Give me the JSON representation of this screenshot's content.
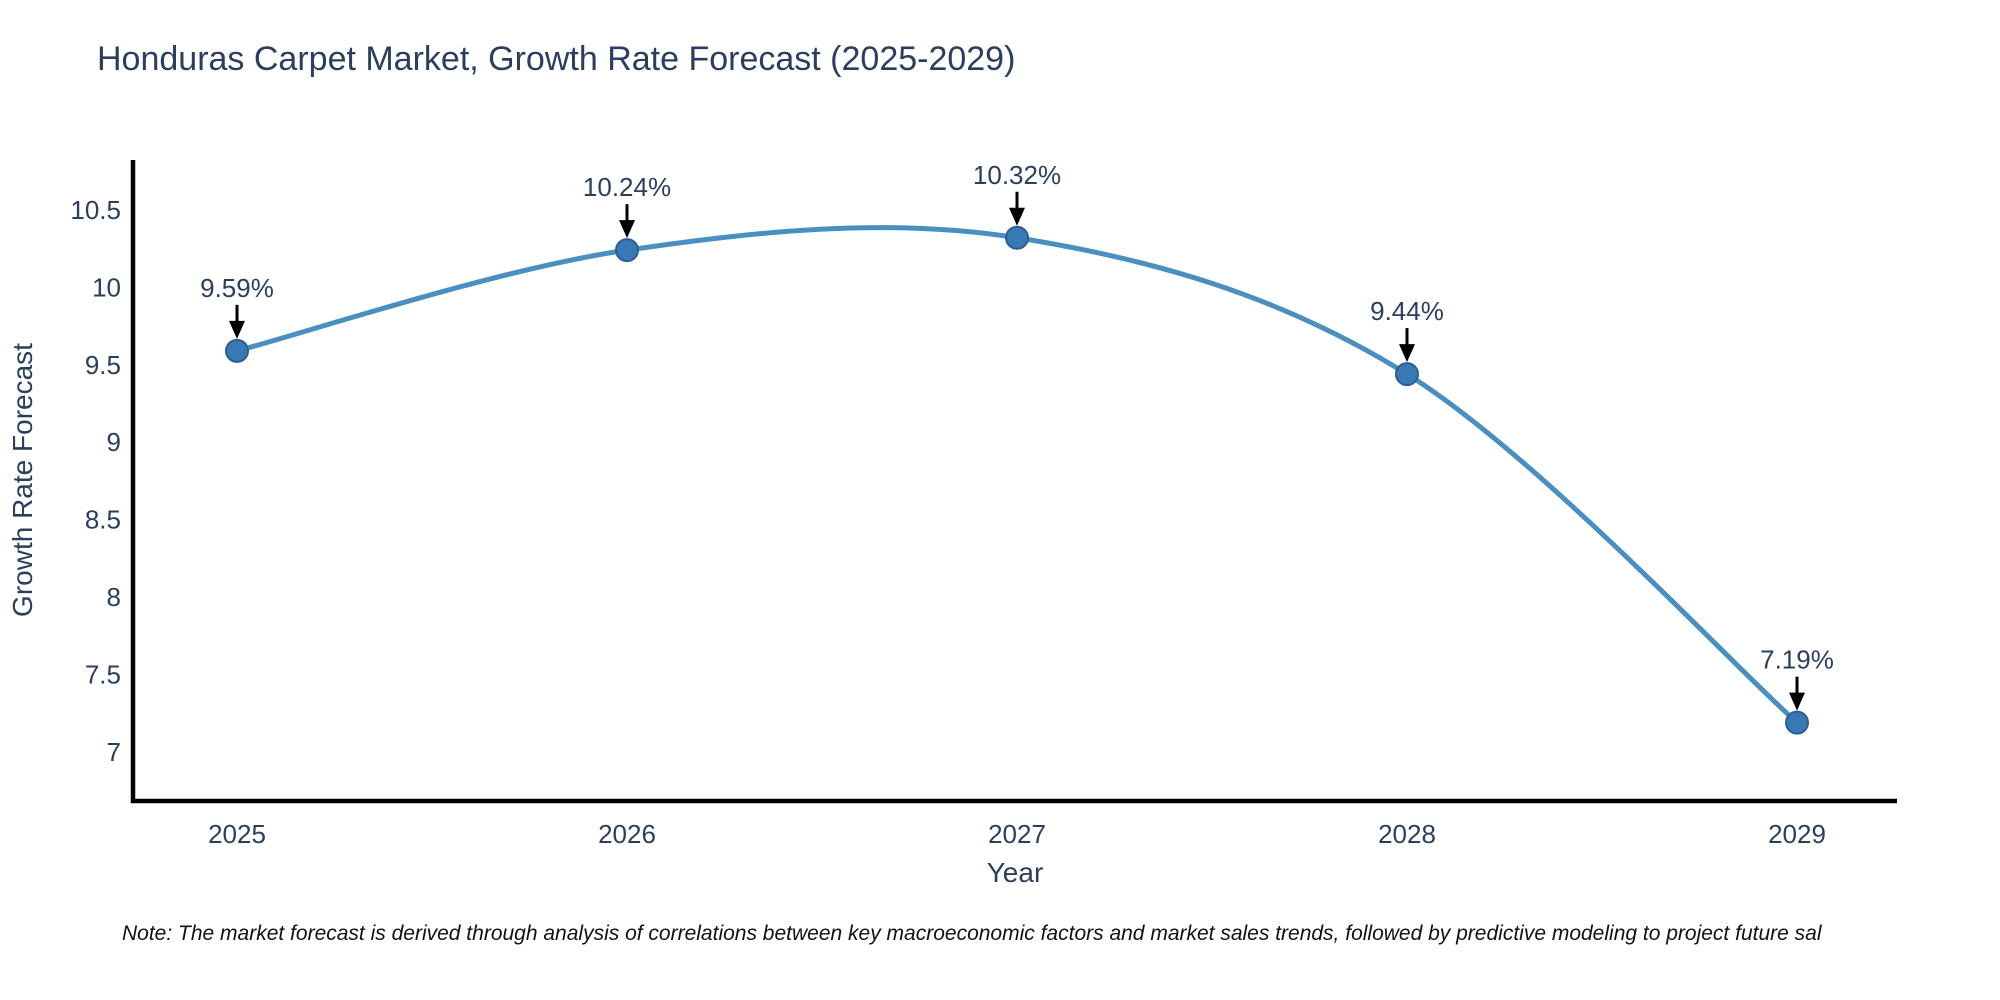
{
  "page": {
    "background": "#ffffff"
  },
  "chart": {
    "title": "Honduras Carpet Market, Growth Rate Forecast (2025-2029)",
    "xlabel": "Year",
    "ylabel": "Growth Rate Forecast",
    "note": "Note: The market forecast is derived through analysis of correlations between key macroeconomic factors and market sales trends, followed by predictive modeling to project future sal",
    "colors": {
      "line": "#4a8fc2",
      "marker_fill": "#3878b4",
      "marker_stroke": "#2b5f94",
      "axis": "#000000",
      "text": "#2a3f5f",
      "annotation_arrow": "#000000",
      "note_text": "#111111",
      "background": "#ffffff"
    }
  },
  "chart_data": {
    "type": "line",
    "line_shape": "spline",
    "x": [
      2025,
      2026,
      2027,
      2028,
      2029
    ],
    "values": [
      9.59,
      10.24,
      10.32,
      9.44,
      7.19
    ],
    "labels": [
      "9.59%",
      "10.24%",
      "10.32%",
      "9.44%",
      "7.19%"
    ],
    "categories": [
      "2025",
      "2026",
      "2027",
      "2028",
      "2029"
    ],
    "title": "Honduras Carpet Market, Growth Rate Forecast (2025-2029)",
    "xlabel": "Year",
    "ylabel": "Growth Rate Forecast",
    "ylim": [
      6.684,
      10.822
    ],
    "yticks": [
      7,
      7.5,
      8,
      8.5,
      9,
      9.5,
      10,
      10.5
    ],
    "ytick_labels": [
      "7",
      "7.5",
      "8",
      "8.5",
      "9",
      "9.5",
      "10",
      "10.5"
    ],
    "grid": false,
    "legend": "none",
    "annotations": "value labels with downward black arrows above each point"
  }
}
